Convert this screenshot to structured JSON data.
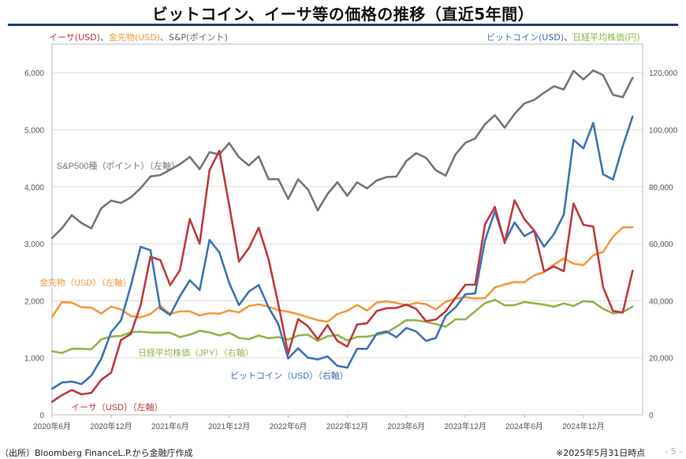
{
  "title": "ビットコイン、イーサ等の価格の推移（直近5年間）",
  "legend_left": [
    {
      "text": "イーサ(USD)",
      "color": "#c0393b"
    },
    {
      "text": "、",
      "color": "#555555"
    },
    {
      "text": "金先物(USD)",
      "color": "#f39a3d"
    },
    {
      "text": "、S&P(ポイント)",
      "color": "#666666"
    }
  ],
  "legend_right": [
    {
      "text": "ビットコイン(USD)",
      "color": "#3d72b8"
    },
    {
      "text": "、",
      "color": "#555555"
    },
    {
      "text": "日経平均株価(円)",
      "color": "#8fb64a"
    }
  ],
  "footer": {
    "source": "（出所）Bloomberg FinanceL.P.から金融庁作成",
    "as_of": "※2025年5月31日時点",
    "page": "- 5 -"
  },
  "chart_data": {
    "type": "line",
    "x_start": "2020-06",
    "x_ticks": [
      "2020年6月",
      "2020年12月",
      "2021年6月",
      "2021年12月",
      "2022年6月",
      "2022年12月",
      "2023年6月",
      "2023年12月",
      "2024年6月",
      "2024年12月"
    ],
    "y_left": {
      "ylim": [
        0,
        6500
      ],
      "ticks": [
        "0",
        "1,000",
        "2,000",
        "3,000",
        "4,000",
        "5,000",
        "6,000"
      ],
      "tick_values": [
        0,
        1000,
        2000,
        3000,
        4000,
        5000,
        6000
      ]
    },
    "y_right": {
      "ylim": [
        0,
        130000
      ],
      "ticks": [
        "0",
        "20,000",
        "40,000",
        "60,000",
        "80,000",
        "100,000",
        "120,000"
      ],
      "tick_values": [
        0,
        20000,
        40000,
        60000,
        80000,
        100000,
        120000
      ]
    },
    "grid": true,
    "series": [
      {
        "name": "S&P500種（ポイント）（左軸）",
        "axis": "left",
        "color": "#767676",
        "values": [
          3100,
          3271,
          3500,
          3363,
          3270,
          3622,
          3756,
          3714,
          3811,
          3973,
          4181,
          4204,
          4298,
          4395,
          4523,
          4308,
          4605,
          4567,
          4766,
          4516,
          4374,
          4530,
          4132,
          4132,
          3785,
          4130,
          3955,
          3586,
          3872,
          4080,
          3840,
          4077,
          3970,
          4109,
          4169,
          4180,
          4450,
          4589,
          4508,
          4288,
          4194,
          4568,
          4770,
          4846,
          5096,
          5254,
          5036,
          5278,
          5460,
          5522,
          5648,
          5762,
          5705,
          6032,
          5882,
          6040,
          5955,
          5612,
          5569,
          5912
        ]
      },
      {
        "name": "金先物（USD）（左軸）",
        "axis": "left",
        "color": "#f39a3d",
        "values": [
          1720,
          1975,
          1968,
          1887,
          1879,
          1777,
          1898,
          1847,
          1734,
          1708,
          1769,
          1907,
          1770,
          1814,
          1814,
          1743,
          1783,
          1774,
          1829,
          1797,
          1909,
          1937,
          1897,
          1837,
          1807,
          1766,
          1711,
          1660,
          1633,
          1768,
          1824,
          1928,
          1827,
          1969,
          1990,
          1962,
          1919,
          1965,
          1940,
          1849,
          1983,
          2036,
          2063,
          2039,
          2044,
          2233,
          2286,
          2327,
          2326,
          2447,
          2503,
          2634,
          2744,
          2650,
          2625,
          2798,
          2858,
          3124,
          3288,
          3289
        ]
      },
      {
        "name": "日経平均株価（JPY）（右軸）",
        "axis": "right",
        "color": "#8fb64a",
        "values": [
          22288,
          21710,
          23140,
          23185,
          22977,
          26434,
          27444,
          27663,
          28966,
          29179,
          28813,
          28860,
          28792,
          27284,
          28090,
          29453,
          28893,
          27822,
          28792,
          27002,
          26527,
          27821,
          26848,
          27280,
          26393,
          27802,
          28092,
          25937,
          27587,
          27969,
          26095,
          27327,
          27446,
          28041,
          28856,
          30888,
          33189,
          33172,
          32619,
          31858,
          30859,
          33487,
          33464,
          36287,
          39166,
          40369,
          38406,
          38488,
          39583,
          39102,
          38648,
          37920,
          39081,
          38208,
          39895,
          39572,
          37156,
          35618,
          36045,
          37965
        ]
      },
      {
        "name": "ビットコイン（USD）（右軸）",
        "axis": "right",
        "color": "#3d72b8",
        "values": [
          9137,
          11323,
          11680,
          10784,
          13804,
          19625,
          29001,
          33114,
          45137,
          58918,
          57750,
          37332,
          35040,
          41626,
          47166,
          43790,
          61318,
          57005,
          46306,
          38483,
          43194,
          45538,
          37714,
          31792,
          19784,
          23336,
          20050,
          19431,
          20495,
          17168,
          16547,
          23139,
          23147,
          28478,
          29268,
          27219,
          30477,
          29230,
          25931,
          26967,
          34667,
          37712,
          42265,
          42580,
          61198,
          71333,
          60636,
          67491,
          62678,
          64619,
          58969,
          63329,
          70215,
          96449,
          93429,
          102405,
          84373,
          82548,
          94207,
          104638
        ]
      },
      {
        "name": "イーサ（USD）（左軸）",
        "axis": "left",
        "color": "#c0393b",
        "values": [
          228,
          345,
          435,
          360,
          386,
          615,
          737,
          1312,
          1417,
          1918,
          2773,
          2714,
          2274,
          2536,
          3434,
          3001,
          4288,
          4632,
          3683,
          2688,
          2922,
          3282,
          2730,
          1942,
          1070,
          1679,
          1554,
          1328,
          1573,
          1296,
          1196,
          1585,
          1605,
          1822,
          1870,
          1874,
          1934,
          1857,
          1645,
          1671,
          1815,
          2052,
          2282,
          2283,
          3340,
          3647,
          3015,
          3762,
          3433,
          3232,
          2514,
          2603,
          2520,
          3705,
          3332,
          3300,
          2237,
          1822,
          1794,
          2528
        ]
      }
    ]
  }
}
